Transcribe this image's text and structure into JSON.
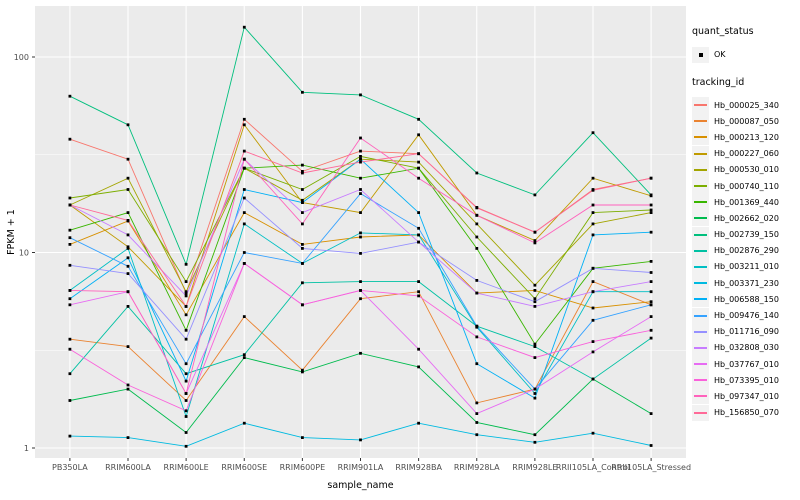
{
  "chart_data": {
    "type": "line",
    "title": "",
    "xlabel": "sample_name",
    "ylabel": "FPKM + 1",
    "x_categories": [
      "PB350LA",
      "RRIM600LA",
      "RRIM600LE",
      "RRIM600SE",
      "RRIM600PE",
      "RRIM901LA",
      "RRIM928BA",
      "RRIM928LA",
      "RRIM928LE",
      "RRII105LA_Control",
      "RRII105LA_Stressed"
    ],
    "y_scale": "log10",
    "y_ticks": [
      1,
      10,
      100
    ],
    "y_minor_ticks": [
      3.162,
      31.62
    ],
    "ylim": [
      1,
      180
    ],
    "grid": true,
    "legend_position": "right",
    "legends": {
      "quant_status": {
        "title": "quant_status",
        "entries": [
          {
            "label": "OK",
            "symbol": "black-square-point"
          }
        ]
      },
      "tracking_id": {
        "title": "tracking_id"
      }
    },
    "series": [
      {
        "name": "Hb_000025_340",
        "color": "#F8766D",
        "values": [
          38,
          30,
          6.2,
          48,
          26,
          33,
          32,
          17,
          12.7,
          21,
          24
        ]
      },
      {
        "name": "Hb_000087_050",
        "color": "#EA8331",
        "values": [
          3.6,
          3.3,
          1.75,
          4.7,
          2.5,
          5.8,
          6.3,
          1.7,
          2.0,
          7.1,
          5.4
        ]
      },
      {
        "name": "Hb_000213_120",
        "color": "#D89000",
        "values": [
          11,
          14.5,
          4.8,
          16,
          11,
          12,
          12.3,
          6.2,
          6.4,
          5.2,
          5.6
        ]
      },
      {
        "name": "Hb_000227_060",
        "color": "#C09B00",
        "values": [
          17.5,
          10.7,
          5.3,
          45,
          18,
          16,
          40,
          15.5,
          11.5,
          24,
          19.5
        ]
      },
      {
        "name": "Hb_000530_010",
        "color": "#A3A500",
        "values": [
          17.5,
          24,
          6.3,
          27,
          18.5,
          30,
          29,
          14,
          6.8,
          14,
          16
        ]
      },
      {
        "name": "Hb_000740_110",
        "color": "#7CAE00",
        "values": [
          19,
          21,
          7.1,
          27,
          21,
          31,
          27,
          12,
          5.8,
          16,
          16.5
        ]
      },
      {
        "name": "Hb_001369_440",
        "color": "#39B600",
        "values": [
          13,
          16,
          4.0,
          27,
          28,
          24,
          27,
          10.5,
          3.4,
          8.3,
          9
        ]
      },
      {
        "name": "Hb_002662_020",
        "color": "#00BB4E",
        "values": [
          1.75,
          2.0,
          1.2,
          2.9,
          2.45,
          3.05,
          2.6,
          1.35,
          1.17,
          2.25,
          1.5
        ]
      },
      {
        "name": "Hb_002739_150",
        "color": "#00BF7D",
        "values": [
          63,
          45,
          8.7,
          142,
          66,
          64,
          48,
          25.5,
          19.7,
          41,
          19.7
        ]
      },
      {
        "name": "Hb_002876_290",
        "color": "#00C1A3",
        "values": [
          2.4,
          5.3,
          2.4,
          3.0,
          7.0,
          7.1,
          7.1,
          4.2,
          3.3,
          2.25,
          3.65
        ]
      },
      {
        "name": "Hb_003211_010",
        "color": "#00BFC4",
        "values": [
          6.4,
          10.5,
          1.45,
          14,
          8.8,
          12.6,
          12.3,
          4.15,
          1.9,
          6.3,
          6.3
        ]
      },
      {
        "name": "Hb_003371_230",
        "color": "#00BAE0",
        "values": [
          1.15,
          1.13,
          1.02,
          1.34,
          1.13,
          1.1,
          1.34,
          1.17,
          1.07,
          1.19,
          1.03
        ]
      },
      {
        "name": "Hb_006588_150",
        "color": "#00B0F6",
        "values": [
          5.8,
          9.4,
          2.2,
          21,
          18,
          30,
          16,
          2.7,
          1.8,
          12.3,
          12.7
        ]
      },
      {
        "name": "Hb_009476_140",
        "color": "#35A2FF",
        "values": [
          11.9,
          8.5,
          2.7,
          10,
          8.8,
          20,
          13.3,
          4.2,
          2.0,
          4.5,
          5.4
        ]
      },
      {
        "name": "Hb_011716_090",
        "color": "#9590FF",
        "values": [
          8.6,
          7.8,
          3.6,
          19,
          10.5,
          9.9,
          11.3,
          7.2,
          5.6,
          8.3,
          7.9
        ]
      },
      {
        "name": "Hb_032808_030",
        "color": "#C77CFF",
        "values": [
          17.5,
          12.3,
          6.0,
          30,
          16,
          21,
          11.3,
          6.2,
          5.3,
          6.3,
          7.1
        ]
      },
      {
        "name": "Hb_037767_010",
        "color": "#E76BF3",
        "values": [
          5.4,
          6.3,
          1.9,
          8.8,
          5.4,
          6.4,
          3.2,
          1.5,
          2.0,
          3.1,
          4.7
        ]
      },
      {
        "name": "Hb_073395_010",
        "color": "#FA62DB",
        "values": [
          3.2,
          2.1,
          1.55,
          8.8,
          5.4,
          6.4,
          6.0,
          3.7,
          2.9,
          3.5,
          4.0
        ]
      },
      {
        "name": "Hb_097347_010",
        "color": "#FF62BC",
        "values": [
          6.4,
          6.3,
          1.9,
          30,
          14,
          38.5,
          24,
          15.5,
          11.2,
          17.5,
          17.5
        ]
      },
      {
        "name": "Hb_156850_070",
        "color": "#FF6A98",
        "values": [
          17.5,
          14.6,
          5.3,
          33,
          25.5,
          29,
          32,
          16.9,
          12.7,
          20.8,
          24
        ]
      }
    ]
  },
  "colors": {
    "panel_bg": "#EBEBEB",
    "grid_major": "#FFFFFF",
    "grid_minor": "#FFFFFF",
    "tick_text": "#4D4D4D",
    "axis_title": "#000000",
    "point": "#000000",
    "legend_key_bg": "#F2F2F2",
    "page_bg": "#FFFFFF"
  }
}
